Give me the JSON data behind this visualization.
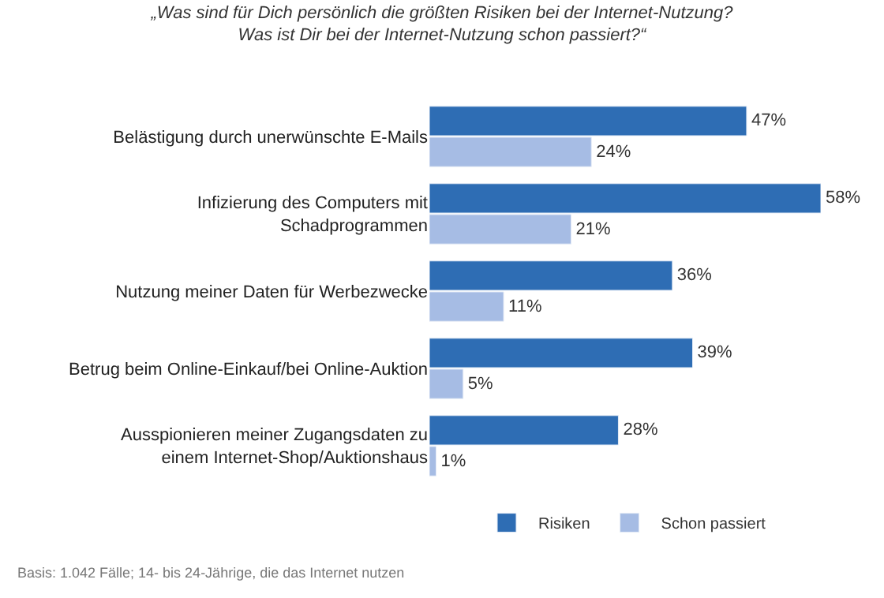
{
  "chart_data": {
    "type": "bar",
    "orientation": "horizontal",
    "title": "„Was sind für Dich persönlich die größten Risiken bei der Internet-Nutzung?\nWas ist Dir bei der Internet-Nutzung schon passiert?“",
    "categories": [
      "Belästigung durch unerwünschte E-Mails",
      "Infizierung des Computers mit\nSchadprogrammen",
      "Nutzung meiner Daten für Werbezwecke",
      "Betrug beim Online-Einkauf/bei Online-Auktion",
      "Ausspionieren meiner Zugangsdaten zu\neinem Internet-Shop/Auktionshaus"
    ],
    "series": [
      {
        "name": "Risiken",
        "color": "#2e6db4",
        "values": [
          47,
          58,
          36,
          39,
          28
        ],
        "value_labels": [
          "47%",
          "58%",
          "36%",
          "39%",
          "28%"
        ]
      },
      {
        "name": "Schon passiert",
        "color": "#a6bce4",
        "values": [
          24,
          21,
          11,
          5,
          1
        ],
        "value_labels": [
          "24%",
          "21%",
          "11%",
          "5%",
          "1%"
        ]
      }
    ],
    "legend": "bottom",
    "annotations": [
      "Basis: 1.042 Fälle; 14- bis 24-Jährige, die das Internet nutzen"
    ]
  }
}
